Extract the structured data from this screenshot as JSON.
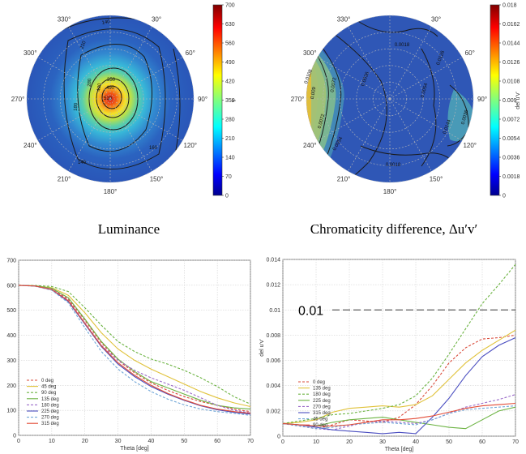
{
  "captions": {
    "left": "Luminance",
    "right": "Chromaticity difference, Δu′v′"
  },
  "annotation": {
    "threshold_label": "0.01",
    "threshold_value": 0.01
  },
  "chart_data": [
    {
      "type": "heatmap",
      "projection": "polar",
      "angle_labels": [
        "0°",
        "30°",
        "60°",
        "90°",
        "120°",
        "150°",
        "180°",
        "210°",
        "240°",
        "270°",
        "300°",
        "330°"
      ],
      "colorbar": {
        "label": "Y",
        "ticks": [
          "0",
          "70",
          "140",
          "210",
          "280",
          "350",
          "420",
          "490",
          "560",
          "630",
          "700"
        ],
        "range": [
          0,
          700
        ]
      },
      "contour_labels": [
        "140",
        "210",
        "280",
        "350",
        "420",
        "490",
        "510",
        "160",
        "140",
        "180"
      ],
      "center_value": 600,
      "edge_value": 90
    },
    {
      "type": "heatmap",
      "projection": "polar",
      "angle_labels": [
        "0°",
        "30°",
        "60°",
        "90°",
        "120°",
        "150°",
        "180°",
        "210°",
        "240°",
        "270°",
        "300°",
        "330°"
      ],
      "colorbar": {
        "label": "del u'v'",
        "ticks": [
          "0",
          "0.0018",
          "0.0036",
          "0.0054",
          "0.0072",
          "0.009",
          "0.0108",
          "0.0126",
          "0.0144",
          "0.0162",
          "0.018"
        ],
        "range": [
          0,
          0.018
        ]
      },
      "contour_labels": [
        "0.0018",
        "0.0036",
        "0.0054",
        "0.0072",
        "0.009",
        "0.0108",
        "0.0126",
        "0.0144",
        "0.0018",
        "0.0036",
        "0.0054",
        "0.0072"
      ]
    },
    {
      "type": "line",
      "xlabel": "Theta [deg]",
      "ylabel": "Y",
      "xlim": [
        0,
        70
      ],
      "ylim": [
        0,
        700
      ],
      "xticks": [
        0,
        10,
        20,
        30,
        40,
        50,
        60,
        70
      ],
      "yticks": [
        0,
        100,
        200,
        300,
        400,
        500,
        600,
        700
      ],
      "grid": true,
      "legend": "bottom-left",
      "x": [
        0,
        5,
        10,
        15,
        20,
        25,
        30,
        35,
        40,
        45,
        50,
        55,
        60,
        65,
        70
      ],
      "series": [
        {
          "name": "0 deg",
          "color": "#d94a3a",
          "dash": true,
          "values": [
            600,
            598,
            585,
            545,
            460,
            370,
            300,
            250,
            210,
            180,
            155,
            135,
            120,
            105,
            95
          ]
        },
        {
          "name": "45 deg",
          "color": "#e0c23a",
          "dash": false,
          "values": [
            600,
            598,
            590,
            560,
            490,
            410,
            345,
            300,
            265,
            235,
            205,
            175,
            150,
            130,
            115
          ]
        },
        {
          "name": "90 deg",
          "color": "#6cb342",
          "dash": true,
          "values": [
            600,
            599,
            595,
            575,
            510,
            440,
            375,
            335,
            305,
            285,
            260,
            230,
            195,
            155,
            125
          ]
        },
        {
          "name": "135 deg",
          "color": "#6cb342",
          "dash": false,
          "values": [
            600,
            598,
            588,
            550,
            465,
            375,
            305,
            255,
            215,
            190,
            165,
            140,
            120,
            110,
            105
          ]
        },
        {
          "name": "180 deg",
          "color": "#9b6bc9",
          "dash": true,
          "values": [
            600,
            597,
            585,
            540,
            450,
            360,
            300,
            260,
            230,
            205,
            180,
            150,
            120,
            100,
            90
          ]
        },
        {
          "name": "225 deg",
          "color": "#4a4ec0",
          "dash": false,
          "values": [
            600,
            597,
            582,
            535,
            445,
            355,
            285,
            235,
            195,
            165,
            140,
            118,
            102,
            92,
            85
          ]
        },
        {
          "name": "270 deg",
          "color": "#6fa6d8",
          "dash": true,
          "values": [
            600,
            596,
            580,
            530,
            430,
            335,
            265,
            215,
            175,
            145,
            122,
            105,
            95,
            88,
            80
          ]
        },
        {
          "name": "315 deg",
          "color": "#e34b36",
          "dash": false,
          "values": [
            600,
            597,
            583,
            538,
            448,
            358,
            290,
            240,
            200,
            168,
            142,
            120,
            105,
            95,
            88
          ]
        }
      ]
    },
    {
      "type": "line",
      "xlabel": "Theta [deg]",
      "ylabel": "del u'v'",
      "xlim": [
        0,
        70
      ],
      "ylim": [
        0,
        0.014
      ],
      "xticks": [
        0,
        10,
        20,
        30,
        40,
        50,
        60,
        70
      ],
      "yticks": [
        0,
        0.002,
        0.004,
        0.006,
        0.008,
        0.01,
        0.012,
        0.014
      ],
      "grid": true,
      "legend": "bottom-left",
      "x": [
        0,
        5,
        10,
        15,
        20,
        25,
        30,
        35,
        40,
        45,
        50,
        55,
        60,
        65,
        70
      ],
      "series": [
        {
          "name": "0 deg",
          "color": "#d94a3a",
          "dash": true,
          "values": [
            0.001,
            0.0008,
            0.0006,
            0.0009,
            0.0013,
            0.0012,
            0.0011,
            0.0015,
            0.0025,
            0.004,
            0.0058,
            0.007,
            0.0077,
            0.0078,
            0.008
          ]
        },
        {
          "name": "135 deg",
          "color": "#e0c23a",
          "dash": false,
          "values": [
            0.001,
            0.0011,
            0.0013,
            0.0019,
            0.0022,
            0.0023,
            0.0024,
            0.0023,
            0.0025,
            0.0032,
            0.0045,
            0.0058,
            0.0068,
            0.0076,
            0.0084
          ]
        },
        {
          "name": "180 deg",
          "color": "#6cb342",
          "dash": true,
          "values": [
            0.001,
            0.0012,
            0.0014,
            0.0017,
            0.0018,
            0.002,
            0.0022,
            0.0025,
            0.0032,
            0.0046,
            0.0065,
            0.0085,
            0.0105,
            0.012,
            0.0136
          ]
        },
        {
          "name": "225 deg",
          "color": "#6cb342",
          "dash": false,
          "values": [
            0.001,
            0.0009,
            0.0008,
            0.0011,
            0.0013,
            0.0014,
            0.0015,
            0.0013,
            0.0011,
            0.0009,
            0.0007,
            0.0006,
            0.0013,
            0.002,
            0.0023
          ]
        },
        {
          "name": "270 deg",
          "color": "#9b6bc9",
          "dash": true,
          "values": [
            0.001,
            0.0008,
            0.0006,
            0.0005,
            0.0008,
            0.0011,
            0.0012,
            0.0011,
            0.001,
            0.0013,
            0.0018,
            0.0023,
            0.0026,
            0.0029,
            0.0033
          ]
        },
        {
          "name": "315 deg",
          "color": "#4a4ec0",
          "dash": false,
          "values": [
            0.001,
            0.0009,
            0.0007,
            0.0005,
            0.0004,
            0.0003,
            0.0002,
            0.0003,
            0.0002,
            0.0015,
            0.003,
            0.0048,
            0.0063,
            0.0072,
            0.0078
          ]
        },
        {
          "name": "45 deg",
          "color": "#6fa6d8",
          "dash": true,
          "values": [
            0.001,
            0.0008,
            0.0006,
            0.0007,
            0.0009,
            0.001,
            0.0011,
            0.001,
            0.0009,
            0.0013,
            0.0018,
            0.0021,
            0.0022,
            0.0023,
            0.0024
          ]
        },
        {
          "name": "90 deg",
          "color": "#e34b36",
          "dash": false,
          "values": [
            0.001,
            0.0009,
            0.0008,
            0.0008,
            0.0009,
            0.0011,
            0.0013,
            0.0013,
            0.0014,
            0.0016,
            0.0019,
            0.0022,
            0.0024,
            0.0025,
            0.0026
          ]
        }
      ]
    }
  ]
}
